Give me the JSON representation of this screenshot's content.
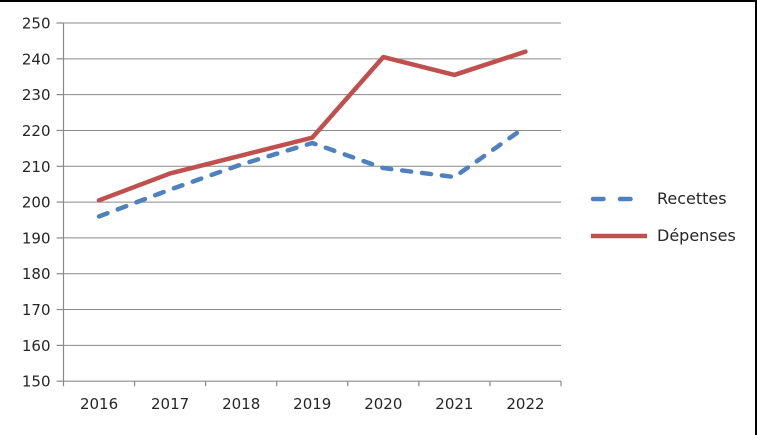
{
  "chart_data": {
    "type": "line",
    "title": "",
    "xlabel": "",
    "ylabel": "",
    "categories": [
      "2016",
      "2017",
      "2018",
      "2019",
      "2020",
      "2021",
      "2022"
    ],
    "series": [
      {
        "name": "Recettes",
        "style": "dashed",
        "color": "#4F81BD",
        "values": [
          196,
          203.5,
          210.5,
          216.5,
          209.5,
          207,
          221
        ]
      },
      {
        "name": "Dépenses",
        "style": "solid",
        "color": "#C0504D",
        "values": [
          200.5,
          208,
          213,
          218,
          240.5,
          235.5,
          242
        ]
      }
    ],
    "ylim": [
      150,
      250
    ],
    "ytick_step": 10,
    "ytick_labels": [
      "150",
      "160",
      "170",
      "180",
      "190",
      "200",
      "210",
      "220",
      "230",
      "240",
      "250"
    ],
    "grid": true,
    "legend_position": "right"
  },
  "colors": {
    "gridline": "#8A8A8A",
    "axis": "#8A8A8A",
    "tick_label": "#262626",
    "legend_label": "#262626",
    "chart_border": "#000000",
    "background": "#FFFFFF"
  }
}
